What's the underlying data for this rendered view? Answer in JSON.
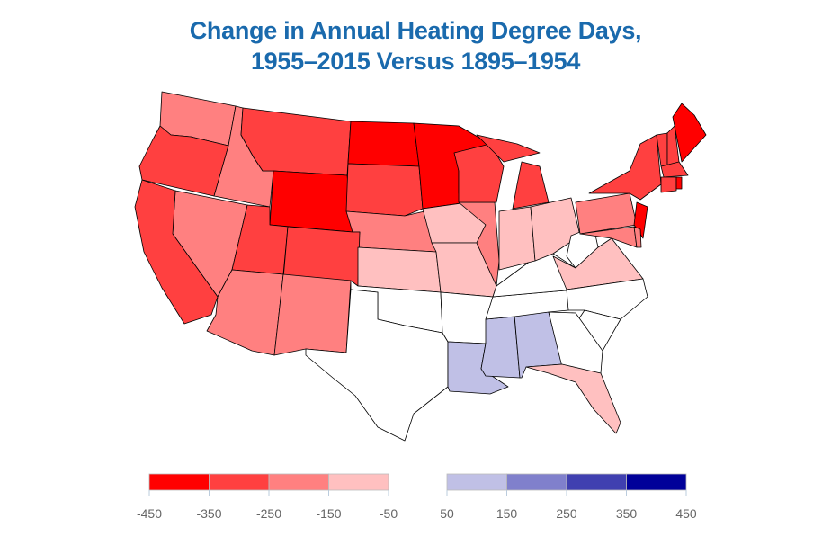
{
  "title_line1": "Change in Annual Heating Degree Days,",
  "title_line2": "1955–2015 Versus 1895–1954",
  "chart_data": {
    "type": "choropleth",
    "title": "Change in Annual Heating Degree Days, 1955–2015 Versus 1895–1954",
    "legend": {
      "bins": [
        {
          "range": [
            -450,
            -350
          ],
          "color": "#ff0000"
        },
        {
          "range": [
            -350,
            -250
          ],
          "color": "#ff4040"
        },
        {
          "range": [
            -250,
            -150
          ],
          "color": "#ff8080"
        },
        {
          "range": [
            -150,
            -50
          ],
          "color": "#ffc0c0"
        },
        {
          "range": [
            50,
            150
          ],
          "color": "#c0c0e6"
        },
        {
          "range": [
            150,
            250
          ],
          "color": "#8080cc"
        },
        {
          "range": [
            250,
            350
          ],
          "color": "#4040b0"
        },
        {
          "range": [
            350,
            450
          ],
          "color": "#000099"
        }
      ],
      "neutral_color": "#ffffff",
      "ticks_negative": [
        "-450",
        "-350",
        "-250",
        "-150",
        "-50"
      ],
      "ticks_positive": [
        "50",
        "150",
        "250",
        "350",
        "450"
      ],
      "placement": "bottom"
    },
    "states": {
      "WA": 2,
      "OR": 1,
      "CA": 1,
      "ID": 2,
      "NV": 2,
      "MT": 1,
      "WY": 0,
      "UT": 1,
      "CO": 1,
      "AZ": 2,
      "NM": 2,
      "ND": 0,
      "SD": 1,
      "NE": 2,
      "KS": 3,
      "OK": -1,
      "TX": -1,
      "MN": 0,
      "IA": 3,
      "MO": 3,
      "AR": -1,
      "LA": 4,
      "WI": 1,
      "IL": 2,
      "MI": 1,
      "IN": 3,
      "OH": 3,
      "KY": -1,
      "TN": -1,
      "MS": 4,
      "AL": 4,
      "GA": -1,
      "FL": 3,
      "SC": -1,
      "NC": -1,
      "VA": 3,
      "WV": -1,
      "MD": 2,
      "DE": 2,
      "PA": 2,
      "NJ": 0,
      "NY": 1,
      "CT": 1,
      "RI": 0,
      "MA": 1,
      "VT": 1,
      "NH": 1,
      "ME": 0
    }
  }
}
